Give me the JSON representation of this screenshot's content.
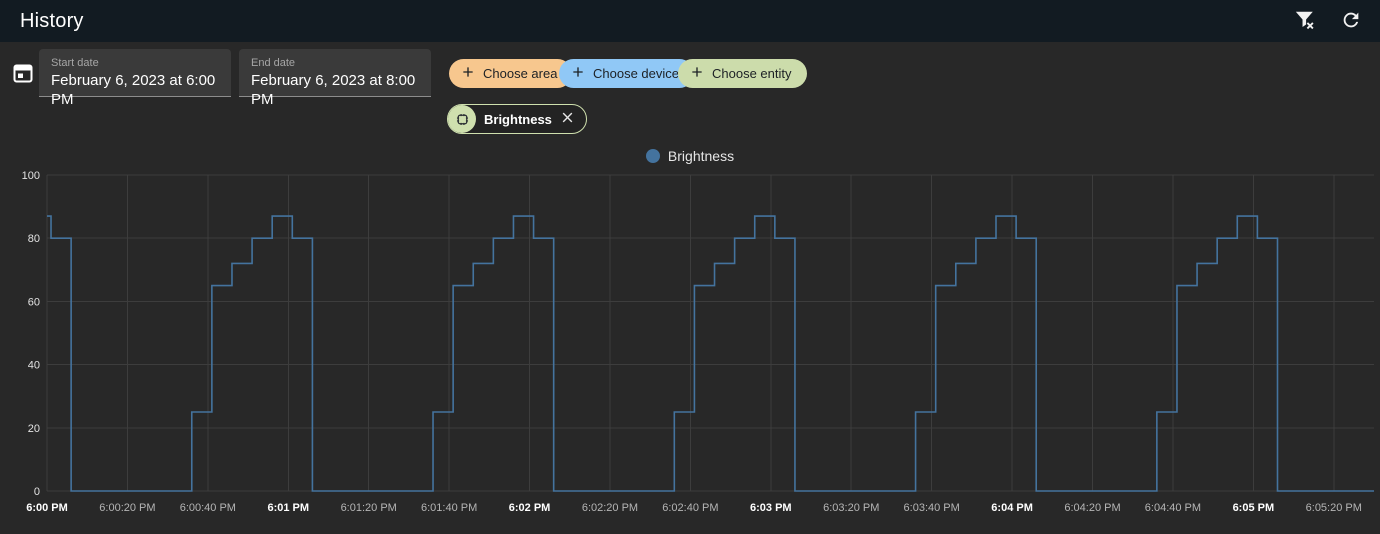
{
  "header": {
    "title": "History",
    "filter_icon": "filter-remove-icon",
    "refresh_icon": "refresh-icon"
  },
  "filters": {
    "calendar_icon": "calendar-icon",
    "start": {
      "label": "Start date",
      "value": "February 6, 2023 at 6:00 PM"
    },
    "end": {
      "label": "End date",
      "value": "February 6, 2023 at 8:00 PM"
    },
    "choose_area_label": "Choose area",
    "choose_device_label": "Choose device",
    "choose_entity_label": "Choose entity",
    "selected_entity": {
      "label": "Brightness",
      "avatar_icon": "entity-shape-icon",
      "close_icon": "close-icon"
    }
  },
  "legend": {
    "label": "Brightness"
  },
  "colors": {
    "header_bg": "#121b22",
    "page_bg": "#282828",
    "series": "#44739e",
    "grid": "#3d3d3d",
    "chip_area": "#f7c78e",
    "chip_device": "#90c8f6",
    "chip_entity": "#ccdcab",
    "entity_chip_accent": "#cfe0ae",
    "field_bg": "#3a3a3a"
  },
  "chart_data": {
    "type": "line",
    "step": "after",
    "title": "",
    "xlabel": "",
    "ylabel": "",
    "legend_position": "top-center",
    "grid": true,
    "ylim": [
      0,
      100
    ],
    "y_ticks": [
      0,
      20,
      40,
      60,
      80,
      100
    ],
    "x_start_label": "6:00 PM",
    "xlim_seconds": [
      0,
      330
    ],
    "x_ticks": [
      {
        "t": 0,
        "label": "6:00 PM",
        "bold": true
      },
      {
        "t": 20,
        "label": "6:00:20 PM",
        "bold": false
      },
      {
        "t": 40,
        "label": "6:00:40 PM",
        "bold": false
      },
      {
        "t": 60,
        "label": "6:01 PM",
        "bold": true
      },
      {
        "t": 80,
        "label": "6:01:20 PM",
        "bold": false
      },
      {
        "t": 100,
        "label": "6:01:40 PM",
        "bold": false
      },
      {
        "t": 120,
        "label": "6:02 PM",
        "bold": true
      },
      {
        "t": 140,
        "label": "6:02:20 PM",
        "bold": false
      },
      {
        "t": 160,
        "label": "6:02:40 PM",
        "bold": false
      },
      {
        "t": 180,
        "label": "6:03 PM",
        "bold": true
      },
      {
        "t": 200,
        "label": "6:03:20 PM",
        "bold": false
      },
      {
        "t": 220,
        "label": "6:03:40 PM",
        "bold": false
      },
      {
        "t": 240,
        "label": "6:04 PM",
        "bold": true
      },
      {
        "t": 260,
        "label": "6:04:20 PM",
        "bold": false
      },
      {
        "t": 280,
        "label": "6:04:40 PM",
        "bold": false
      },
      {
        "t": 300,
        "label": "6:05 PM",
        "bold": true
      },
      {
        "t": 320,
        "label": "6:05:20 PM",
        "bold": false
      }
    ],
    "series": [
      {
        "name": "Brightness",
        "points_t_seconds_value": [
          [
            0,
            87
          ],
          [
            1,
            80
          ],
          [
            6,
            0
          ],
          [
            36,
            25
          ],
          [
            41,
            65
          ],
          [
            46,
            72
          ],
          [
            51,
            80
          ],
          [
            56,
            87
          ],
          [
            61,
            80
          ],
          [
            66,
            0
          ],
          [
            96,
            25
          ],
          [
            101,
            65
          ],
          [
            106,
            72
          ],
          [
            111,
            80
          ],
          [
            116,
            87
          ],
          [
            121,
            80
          ],
          [
            126,
            0
          ],
          [
            156,
            25
          ],
          [
            161,
            65
          ],
          [
            166,
            72
          ],
          [
            171,
            80
          ],
          [
            176,
            87
          ],
          [
            181,
            80
          ],
          [
            186,
            0
          ],
          [
            216,
            25
          ],
          [
            221,
            65
          ],
          [
            226,
            72
          ],
          [
            231,
            80
          ],
          [
            236,
            87
          ],
          [
            241,
            80
          ],
          [
            246,
            0
          ],
          [
            276,
            25
          ],
          [
            281,
            65
          ],
          [
            286,
            72
          ],
          [
            291,
            80
          ],
          [
            296,
            87
          ],
          [
            301,
            80
          ],
          [
            306,
            0
          ],
          [
            330,
            0
          ]
        ]
      }
    ]
  }
}
